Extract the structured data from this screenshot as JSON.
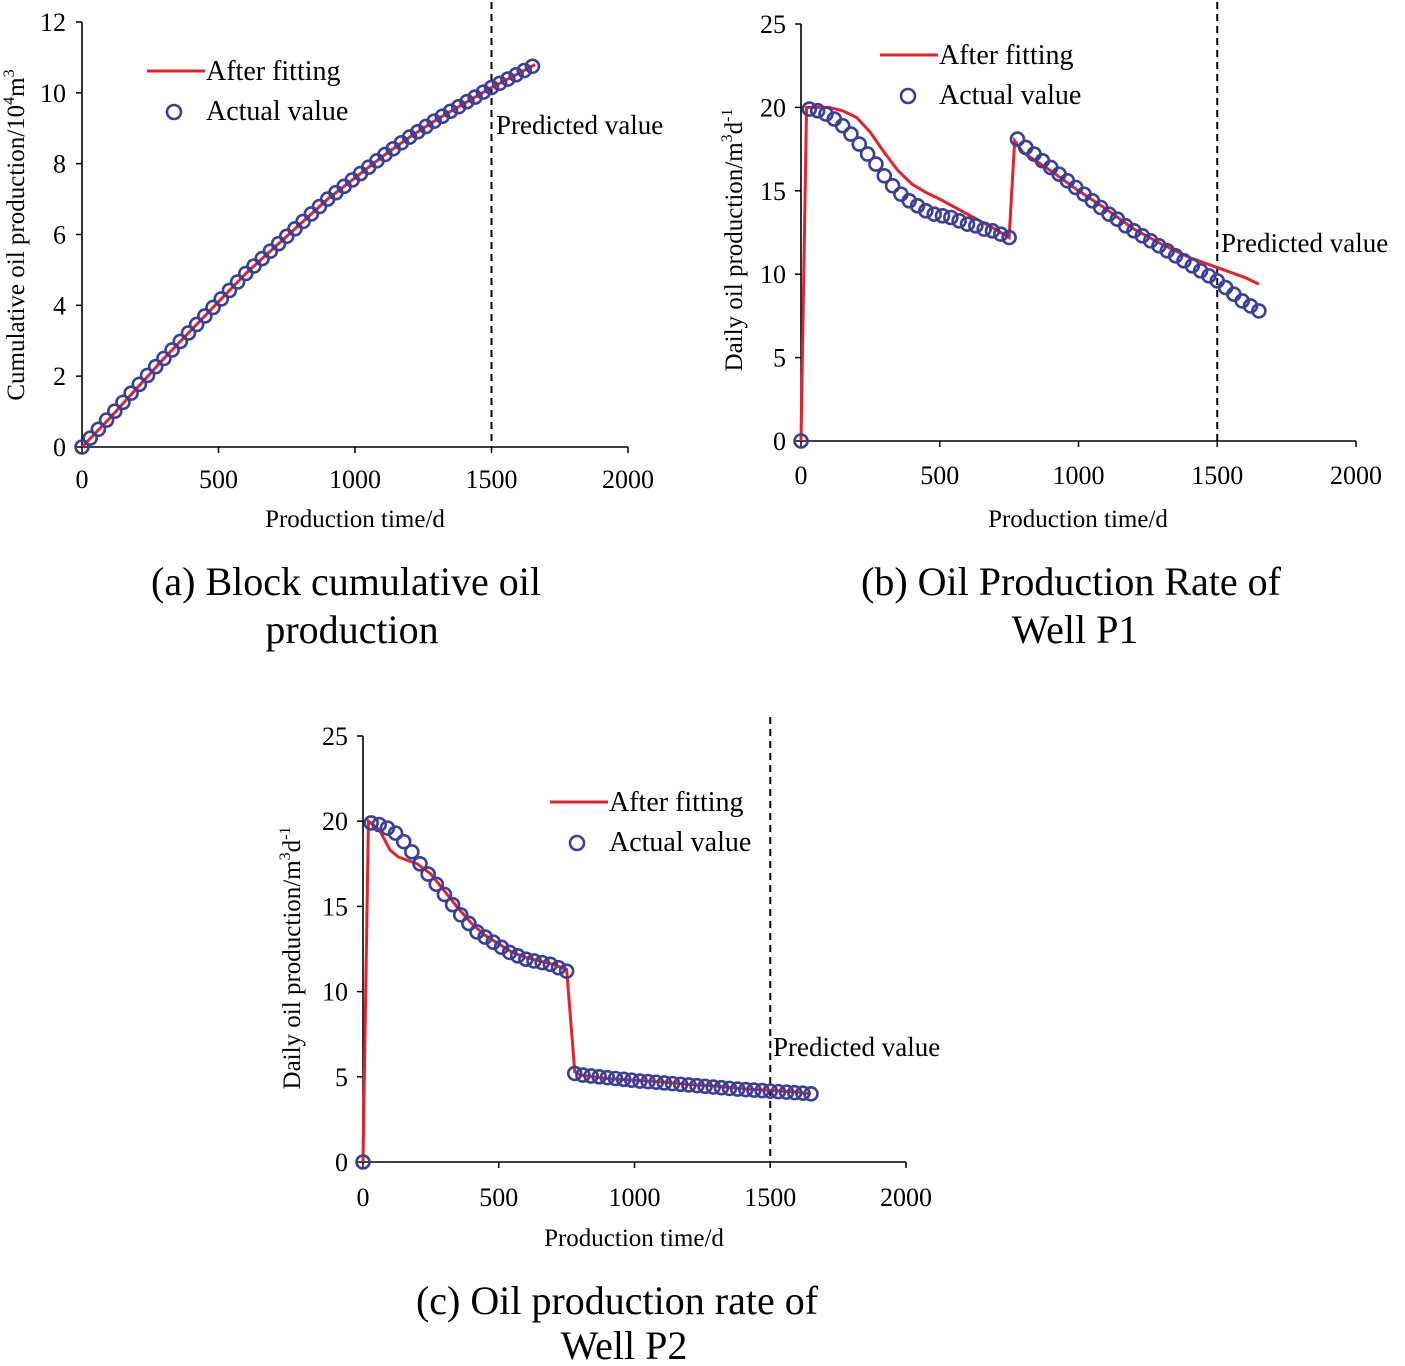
{
  "colors": {
    "fit": "#e8202a",
    "actual": "#3a3f9c",
    "axis": "#000000"
  },
  "chart_data": [
    {
      "id": "a",
      "type": "line",
      "caption_lines": [
        "(a) Block cumulative oil",
        "production"
      ],
      "xlabel": "Production time/d",
      "ylabel": {
        "main": "Cumulative oil production/10",
        "sup1": "4",
        "mid": "m",
        "sup2": "3"
      },
      "xlim": [
        0,
        2000
      ],
      "ylim": [
        0,
        12
      ],
      "xticks": [
        "0",
        "500",
        "1000",
        "1500",
        "2000"
      ],
      "yticks": [
        "0",
        "2",
        "4",
        "6",
        "8",
        "10",
        "12"
      ],
      "prediction_x": 1500,
      "prediction_label": "Predicted value",
      "legend": {
        "fit": "After fitting",
        "actual": "Actual value",
        "position": "top-left"
      },
      "series": [
        {
          "name": "After fitting",
          "kind": "line",
          "x": [
            0,
            100,
            200,
            300,
            400,
            500,
            600,
            700,
            800,
            900,
            1000,
            1100,
            1200,
            1300,
            1400,
            1500,
            1600,
            1660
          ],
          "y": [
            0,
            0.8,
            1.65,
            2.5,
            3.3,
            4.1,
            4.9,
            5.6,
            6.3,
            7.0,
            7.6,
            8.2,
            8.75,
            9.25,
            9.7,
            10.15,
            10.55,
            10.8
          ]
        },
        {
          "name": "Actual value",
          "kind": "markers",
          "x": [
            0,
            30,
            60,
            90,
            120,
            150,
            180,
            210,
            240,
            270,
            300,
            330,
            360,
            390,
            420,
            450,
            480,
            510,
            540,
            570,
            600,
            630,
            660,
            690,
            720,
            750,
            780,
            810,
            840,
            870,
            900,
            930,
            960,
            990,
            1020,
            1050,
            1080,
            1110,
            1140,
            1170,
            1200,
            1230,
            1260,
            1290,
            1320,
            1350,
            1380,
            1410,
            1440,
            1470,
            1500,
            1530,
            1560,
            1590,
            1620,
            1650
          ],
          "y": [
            0,
            0.25,
            0.5,
            0.76,
            1.01,
            1.26,
            1.52,
            1.77,
            2.02,
            2.27,
            2.5,
            2.74,
            2.98,
            3.22,
            3.46,
            3.7,
            3.94,
            4.18,
            4.42,
            4.66,
            4.9,
            5.11,
            5.32,
            5.53,
            5.74,
            5.95,
            6.16,
            6.37,
            6.58,
            6.79,
            7.0,
            7.18,
            7.36,
            7.54,
            7.72,
            7.9,
            8.08,
            8.26,
            8.42,
            8.59,
            8.75,
            8.9,
            9.05,
            9.2,
            9.34,
            9.48,
            9.61,
            9.75,
            9.88,
            10.02,
            10.15,
            10.27,
            10.39,
            10.51,
            10.63,
            10.75
          ]
        }
      ]
    },
    {
      "id": "b",
      "type": "line",
      "caption_lines": [
        "(b) Oil Production Rate of",
        "Well P1"
      ],
      "xlabel": "Production time/d",
      "ylabel": {
        "main": "Daily oil production/m",
        "sup1": "3",
        "mid": "d",
        "sup2": "-1"
      },
      "xlim": [
        0,
        2000
      ],
      "ylim": [
        0,
        25
      ],
      "xticks": [
        "0",
        "500",
        "1000",
        "1500",
        "2000"
      ],
      "yticks": [
        "0",
        "5",
        "10",
        "15",
        "20",
        "25"
      ],
      "prediction_x": 1500,
      "prediction_label": "Predicted value",
      "legend": {
        "fit": "After fitting",
        "actual": "Actual value",
        "position": "top-left"
      },
      "series": [
        {
          "name": "After fitting",
          "kind": "line",
          "x": [
            0,
            20,
            100,
            150,
            200,
            250,
            300,
            350,
            400,
            450,
            500,
            600,
            700,
            750,
            770,
            800,
            900,
            1000,
            1100,
            1200,
            1300,
            1400,
            1500,
            1600,
            1650
          ],
          "y": [
            0,
            20,
            20,
            19.8,
            19.4,
            18.5,
            17.3,
            16.2,
            15.4,
            14.9,
            14.5,
            13.6,
            12.7,
            12.2,
            18.0,
            17.3,
            16.2,
            15.0,
            13.9,
            12.7,
            11.8,
            11.0,
            10.4,
            9.8,
            9.4
          ]
        },
        {
          "name": "Actual value",
          "kind": "markers",
          "x": [
            0,
            30,
            60,
            90,
            120,
            150,
            180,
            210,
            240,
            270,
            300,
            330,
            360,
            390,
            420,
            450,
            480,
            510,
            540,
            570,
            600,
            630,
            660,
            690,
            720,
            750,
            780,
            810,
            840,
            870,
            900,
            930,
            960,
            990,
            1020,
            1050,
            1080,
            1110,
            1140,
            1170,
            1200,
            1230,
            1260,
            1290,
            1320,
            1350,
            1380,
            1410,
            1440,
            1470,
            1500,
            1530,
            1560,
            1590,
            1620,
            1650
          ],
          "y": [
            0,
            19.9,
            19.8,
            19.6,
            19.3,
            18.9,
            18.4,
            17.8,
            17.2,
            16.6,
            15.9,
            15.3,
            14.8,
            14.4,
            14.1,
            13.8,
            13.6,
            13.5,
            13.4,
            13.2,
            13.0,
            12.9,
            12.7,
            12.6,
            12.4,
            12.2,
            18.1,
            17.6,
            17.2,
            16.8,
            16.4,
            16.0,
            15.6,
            15.2,
            14.8,
            14.4,
            14.0,
            13.6,
            13.3,
            12.9,
            12.6,
            12.3,
            12.0,
            11.7,
            11.4,
            11.1,
            10.8,
            10.5,
            10.2,
            9.9,
            9.6,
            9.2,
            8.8,
            8.4,
            8.1,
            7.8
          ]
        }
      ]
    },
    {
      "id": "c",
      "type": "line",
      "caption_lines": [
        "(c) Oil production rate of",
        "Well P2"
      ],
      "xlabel": "Production time/d",
      "ylabel": {
        "main": "Daily oil production/m",
        "sup1": "3",
        "mid": "d",
        "sup2": "-1"
      },
      "xlim": [
        0,
        2000
      ],
      "ylim": [
        0,
        25
      ],
      "xticks": [
        "0",
        "500",
        "1000",
        "1500",
        "2000"
      ],
      "yticks": [
        "0",
        "5",
        "10",
        "15",
        "20",
        "25"
      ],
      "prediction_x": 1500,
      "prediction_label": "Predicted value",
      "legend": {
        "fit": "After fitting",
        "actual": "Actual value",
        "position": "top-center"
      },
      "series": [
        {
          "name": "After fitting",
          "kind": "line",
          "x": [
            0,
            20,
            60,
            100,
            130,
            200,
            250,
            300,
            350,
            400,
            450,
            500,
            550,
            600,
            650,
            700,
            750,
            780,
            800,
            900,
            1000,
            1100,
            1200,
            1300,
            1400,
            1500,
            1600,
            1650
          ],
          "y": [
            0,
            20,
            19.5,
            18.3,
            17.9,
            17.5,
            16.9,
            15.9,
            14.9,
            14.0,
            13.3,
            12.8,
            12.3,
            12.0,
            11.8,
            11.6,
            11.3,
            5.3,
            5.1,
            4.9,
            4.8,
            4.7,
            4.55,
            4.45,
            4.3,
            4.2,
            4.1,
            4.0
          ]
        },
        {
          "name": "Actual value",
          "kind": "markers",
          "x": [
            0,
            30,
            60,
            90,
            120,
            150,
            180,
            210,
            240,
            270,
            300,
            330,
            360,
            390,
            420,
            450,
            480,
            510,
            540,
            570,
            600,
            630,
            660,
            690,
            720,
            750,
            780,
            810,
            840,
            870,
            900,
            930,
            960,
            990,
            1020,
            1050,
            1080,
            1110,
            1140,
            1170,
            1200,
            1230,
            1260,
            1290,
            1320,
            1350,
            1380,
            1410,
            1440,
            1470,
            1500,
            1530,
            1560,
            1590,
            1620,
            1650
          ],
          "y": [
            0,
            19.9,
            19.8,
            19.6,
            19.3,
            18.8,
            18.2,
            17.5,
            16.9,
            16.3,
            15.7,
            15.1,
            14.5,
            14.0,
            13.5,
            13.2,
            12.9,
            12.6,
            12.3,
            12.1,
            11.9,
            11.8,
            11.7,
            11.6,
            11.4,
            11.2,
            5.2,
            5.1,
            5.05,
            5.0,
            4.95,
            4.9,
            4.85,
            4.8,
            4.75,
            4.72,
            4.68,
            4.64,
            4.6,
            4.56,
            4.52,
            4.48,
            4.44,
            4.4,
            4.36,
            4.32,
            4.28,
            4.25,
            4.22,
            4.19,
            4.16,
            4.13,
            4.1,
            4.07,
            4.04,
            4.0
          ]
        }
      ]
    }
  ]
}
